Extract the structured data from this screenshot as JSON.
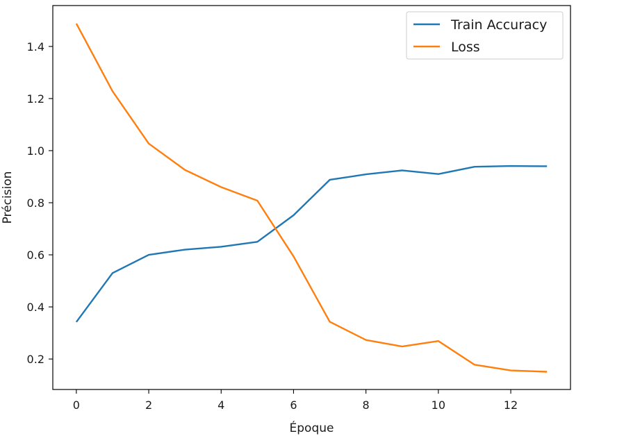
{
  "chart_data": {
    "type": "line",
    "title": "",
    "xlabel": "Époque",
    "ylabel": "Précision",
    "xlim": [
      -0.65,
      13.65
    ],
    "ylim": [
      0.083,
      1.557
    ],
    "xticks": [
      0,
      2,
      4,
      6,
      8,
      10,
      12
    ],
    "yticks": [
      0.2,
      0.4,
      0.6,
      0.8,
      1.0,
      1.2,
      1.4
    ],
    "grid": false,
    "legend_position": "top-right",
    "x": [
      0,
      1,
      2,
      3,
      4,
      5,
      6,
      7,
      8,
      9,
      10,
      11,
      12,
      13
    ],
    "series": [
      {
        "name": "Train Accuracy",
        "color": "#1f77b4",
        "values": [
          0.342,
          0.53,
          0.6,
          0.62,
          0.631,
          0.65,
          0.752,
          0.888,
          0.909,
          0.924,
          0.91,
          0.938,
          0.941,
          0.94
        ]
      },
      {
        "name": "Loss",
        "color": "#ff7f0e",
        "values": [
          1.488,
          1.228,
          1.027,
          0.926,
          0.86,
          0.808,
          0.594,
          0.343,
          0.273,
          0.248,
          0.269,
          0.178,
          0.156,
          0.151
        ]
      }
    ]
  }
}
